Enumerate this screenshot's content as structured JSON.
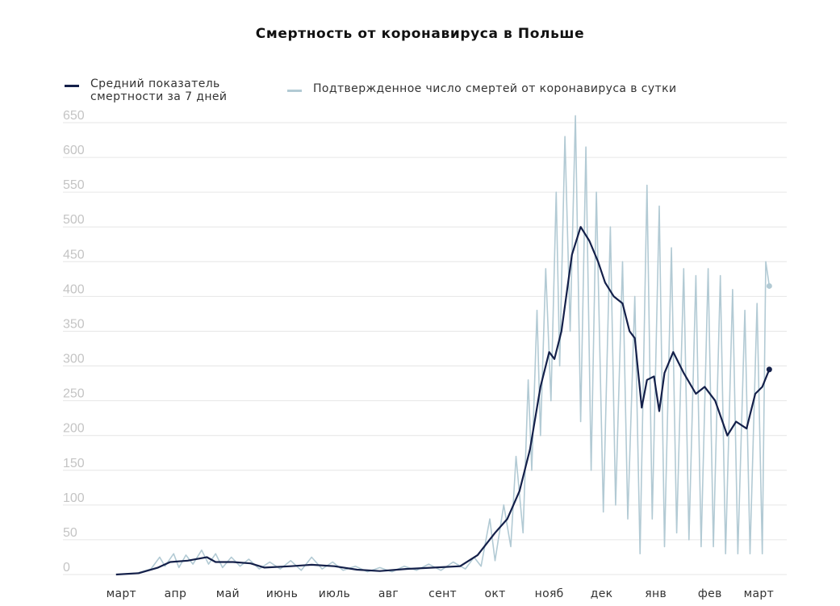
{
  "chart_data": {
    "type": "line",
    "title": "Смертность от коронавируса в Польше",
    "xlabel": "",
    "ylabel": "",
    "ylim": [
      0,
      650
    ],
    "yticks": [
      0,
      50,
      100,
      150,
      200,
      250,
      300,
      350,
      400,
      450,
      500,
      550,
      600,
      650
    ],
    "grid": true,
    "legend_position": "top-left",
    "x_domain": [
      "2020-03-01",
      "2021-03-31"
    ],
    "xticks": [
      {
        "label": "март",
        "date": "2020-03-15"
      },
      {
        "label": "апр",
        "date": "2020-04-15"
      },
      {
        "label": "май",
        "date": "2020-05-15"
      },
      {
        "label": "июнь",
        "date": "2020-06-15"
      },
      {
        "label": "июль",
        "date": "2020-07-15"
      },
      {
        "label": "авг",
        "date": "2020-08-15"
      },
      {
        "label": "сент",
        "date": "2020-09-15"
      },
      {
        "label": "окт",
        "date": "2020-10-15"
      },
      {
        "label": "нояб",
        "date": "2020-11-15"
      },
      {
        "label": "дек",
        "date": "2020-12-15"
      },
      {
        "label": "янв",
        "date": "2021-01-15"
      },
      {
        "label": "фев",
        "date": "2021-02-15"
      },
      {
        "label": "март",
        "date": "2021-03-15"
      }
    ],
    "series": [
      {
        "name": "Средний показатель смертности за 7 дней",
        "color": "#14204a",
        "points": [
          [
            "2020-03-12",
            0
          ],
          [
            "2020-03-25",
            2
          ],
          [
            "2020-04-05",
            10
          ],
          [
            "2020-04-12",
            18
          ],
          [
            "2020-04-22",
            20
          ],
          [
            "2020-05-03",
            25
          ],
          [
            "2020-05-08",
            18
          ],
          [
            "2020-05-18",
            18
          ],
          [
            "2020-05-28",
            16
          ],
          [
            "2020-06-05",
            10
          ],
          [
            "2020-06-20",
            12
          ],
          [
            "2020-07-02",
            14
          ],
          [
            "2020-07-15",
            12
          ],
          [
            "2020-07-28",
            7
          ],
          [
            "2020-08-10",
            5
          ],
          [
            "2020-08-25",
            8
          ],
          [
            "2020-09-10",
            10
          ],
          [
            "2020-09-25",
            12
          ],
          [
            "2020-10-05",
            28
          ],
          [
            "2020-10-15",
            60
          ],
          [
            "2020-10-22",
            80
          ],
          [
            "2020-10-29",
            120
          ],
          [
            "2020-11-04",
            180
          ],
          [
            "2020-11-10",
            270
          ],
          [
            "2020-11-15",
            320
          ],
          [
            "2020-11-18",
            310
          ],
          [
            "2020-11-22",
            350
          ],
          [
            "2020-11-28",
            460
          ],
          [
            "2020-12-03",
            500
          ],
          [
            "2020-12-08",
            480
          ],
          [
            "2020-12-13",
            450
          ],
          [
            "2020-12-17",
            420
          ],
          [
            "2020-12-22",
            400
          ],
          [
            "2020-12-27",
            390
          ],
          [
            "2020-12-31",
            350
          ],
          [
            "2021-01-03",
            340
          ],
          [
            "2021-01-07",
            240
          ],
          [
            "2021-01-10",
            280
          ],
          [
            "2021-01-14",
            285
          ],
          [
            "2021-01-17",
            235
          ],
          [
            "2021-01-20",
            290
          ],
          [
            "2021-01-25",
            320
          ],
          [
            "2021-01-31",
            290
          ],
          [
            "2021-02-07",
            260
          ],
          [
            "2021-02-12",
            270
          ],
          [
            "2021-02-18",
            250
          ],
          [
            "2021-02-25",
            200
          ],
          [
            "2021-03-02",
            220
          ],
          [
            "2021-03-08",
            210
          ],
          [
            "2021-03-13",
            260
          ],
          [
            "2021-03-17",
            270
          ],
          [
            "2021-03-21",
            295
          ]
        ]
      },
      {
        "name": "Подтвержденное число смертей от коронавируса в сутки",
        "color": "#b2cad4",
        "points": [
          [
            "2020-03-12",
            0
          ],
          [
            "2020-03-24",
            2
          ],
          [
            "2020-04-01",
            8
          ],
          [
            "2020-04-06",
            25
          ],
          [
            "2020-04-09",
            12
          ],
          [
            "2020-04-14",
            30
          ],
          [
            "2020-04-17",
            10
          ],
          [
            "2020-04-21",
            28
          ],
          [
            "2020-04-25",
            15
          ],
          [
            "2020-04-30",
            35
          ],
          [
            "2020-05-04",
            15
          ],
          [
            "2020-05-08",
            30
          ],
          [
            "2020-05-12",
            10
          ],
          [
            "2020-05-17",
            25
          ],
          [
            "2020-05-22",
            12
          ],
          [
            "2020-05-27",
            22
          ],
          [
            "2020-06-02",
            8
          ],
          [
            "2020-06-08",
            18
          ],
          [
            "2020-06-14",
            8
          ],
          [
            "2020-06-20",
            20
          ],
          [
            "2020-06-26",
            6
          ],
          [
            "2020-07-02",
            25
          ],
          [
            "2020-07-08",
            8
          ],
          [
            "2020-07-14",
            18
          ],
          [
            "2020-07-20",
            6
          ],
          [
            "2020-07-27",
            12
          ],
          [
            "2020-08-03",
            4
          ],
          [
            "2020-08-10",
            10
          ],
          [
            "2020-08-17",
            4
          ],
          [
            "2020-08-24",
            12
          ],
          [
            "2020-08-31",
            6
          ],
          [
            "2020-09-07",
            15
          ],
          [
            "2020-09-14",
            6
          ],
          [
            "2020-09-21",
            18
          ],
          [
            "2020-09-28",
            8
          ],
          [
            "2020-10-03",
            25
          ],
          [
            "2020-10-07",
            12
          ],
          [
            "2020-10-12",
            80
          ],
          [
            "2020-10-15",
            20
          ],
          [
            "2020-10-20",
            100
          ],
          [
            "2020-10-24",
            40
          ],
          [
            "2020-10-27",
            170
          ],
          [
            "2020-10-31",
            60
          ],
          [
            "2020-11-03",
            280
          ],
          [
            "2020-11-05",
            150
          ],
          [
            "2020-11-08",
            380
          ],
          [
            "2020-11-10",
            200
          ],
          [
            "2020-11-13",
            440
          ],
          [
            "2020-11-16",
            250
          ],
          [
            "2020-11-19",
            550
          ],
          [
            "2020-11-21",
            300
          ],
          [
            "2020-11-24",
            630
          ],
          [
            "2020-11-27",
            350
          ],
          [
            "2020-11-30",
            660
          ],
          [
            "2020-12-03",
            220
          ],
          [
            "2020-12-06",
            615
          ],
          [
            "2020-12-09",
            150
          ],
          [
            "2020-12-12",
            550
          ],
          [
            "2020-12-16",
            90
          ],
          [
            "2020-12-20",
            500
          ],
          [
            "2020-12-23",
            100
          ],
          [
            "2020-12-27",
            450
          ],
          [
            "2020-12-30",
            80
          ],
          [
            "2021-01-03",
            400
          ],
          [
            "2021-01-06",
            30
          ],
          [
            "2021-01-10",
            560
          ],
          [
            "2021-01-13",
            80
          ],
          [
            "2021-01-17",
            530
          ],
          [
            "2021-01-20",
            40
          ],
          [
            "2021-01-24",
            470
          ],
          [
            "2021-01-27",
            60
          ],
          [
            "2021-01-31",
            440
          ],
          [
            "2021-02-03",
            50
          ],
          [
            "2021-02-07",
            430
          ],
          [
            "2021-02-10",
            40
          ],
          [
            "2021-02-14",
            440
          ],
          [
            "2021-02-17",
            40
          ],
          [
            "2021-02-21",
            430
          ],
          [
            "2021-02-24",
            30
          ],
          [
            "2021-02-28",
            410
          ],
          [
            "2021-03-03",
            30
          ],
          [
            "2021-03-07",
            380
          ],
          [
            "2021-03-10",
            30
          ],
          [
            "2021-03-14",
            390
          ],
          [
            "2021-03-17",
            30
          ],
          [
            "2021-03-19",
            450
          ],
          [
            "2021-03-21",
            415
          ]
        ]
      }
    ]
  }
}
